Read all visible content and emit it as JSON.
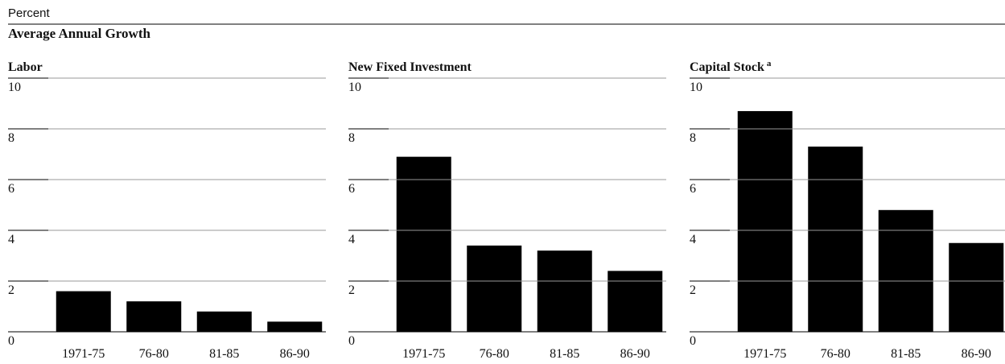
{
  "unit_label": "Percent",
  "title": "Average Annual Growth",
  "chart_data": [
    {
      "type": "bar",
      "title": "Labor",
      "categories": [
        "1971-75",
        "76-80",
        "81-85",
        "86-90"
      ],
      "values": [
        1.6,
        1.2,
        0.8,
        0.4
      ],
      "color": "#000000",
      "ylim": [
        0,
        10
      ],
      "yticks": [
        0,
        2,
        4,
        6,
        8,
        10
      ],
      "grid": true
    },
    {
      "type": "bar",
      "title": "New Fixed Investment",
      "categories": [
        "1971-75",
        "76-80",
        "81-85",
        "86-90"
      ],
      "values": [
        6.9,
        3.4,
        3.2,
        2.4
      ],
      "color": "#000000",
      "ylim": [
        0,
        10
      ],
      "yticks": [
        0,
        2,
        4,
        6,
        8,
        10
      ],
      "grid": true
    },
    {
      "type": "bar",
      "title": "Capital Stock",
      "title_note": "a",
      "categories": [
        "1971-75",
        "76-80",
        "81-85",
        "86-90"
      ],
      "values": [
        8.7,
        7.3,
        4.8,
        3.5
      ],
      "color": "#000000",
      "ylim": [
        0,
        10
      ],
      "yticks": [
        0,
        2,
        4,
        6,
        8,
        10
      ],
      "grid": true
    }
  ]
}
